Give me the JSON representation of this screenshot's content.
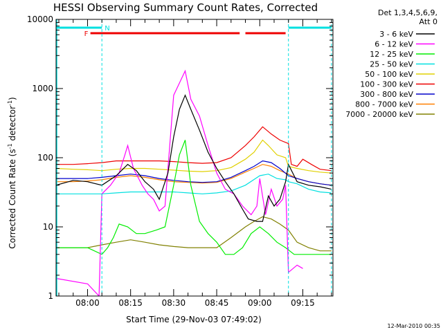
{
  "chart_data": {
    "type": "line",
    "title": "HESSI Observing Summary Count Rates, Corrected",
    "xlabel": "Start Time (29-Nov-03 07:49:02)",
    "ylabel_main": "Corrected Count Rate (s",
    "ylabel_sup1": "-1",
    "ylabel_mid": " detector",
    "ylabel_sup2": "-1",
    "ylabel_end": ")",
    "yscale": "log",
    "ylim": [
      1,
      10000
    ],
    "xlim": [
      "07:49:02",
      "09:25:30"
    ],
    "x_ticks": [
      "08:00",
      "08:15",
      "08:30",
      "08:45",
      "09:00",
      "09:15"
    ],
    "y_ticks": [
      "1",
      "10",
      "100",
      "1000",
      "10000"
    ],
    "legend_header": [
      "Det 1,3,4,5,6,9,",
      "Att 0"
    ],
    "legend_placement": "right",
    "footer_date": "12-Mar-2010 00:35",
    "flags": {
      "flare_label": "F",
      "night_label": "N",
      "flare_color": "#ee0000",
      "night_color": "#00e0e0",
      "flare_spans": [
        [
          "08:01",
          "08:53"
        ],
        [
          "08:55",
          "09:09"
        ]
      ],
      "night_spans": [
        [
          "07:49",
          "08:05"
        ],
        [
          "09:10",
          "09:25"
        ]
      ],
      "night_boundaries": [
        "08:05",
        "09:10",
        "09:25"
      ]
    },
    "series": [
      {
        "name": "3 - 6 keV",
        "color": "#000000",
        "points": [
          [
            "07:49",
            40
          ],
          [
            "07:55",
            47
          ],
          [
            "08:00",
            45
          ],
          [
            "08:05",
            40
          ],
          [
            "08:10",
            55
          ],
          [
            "08:14",
            80
          ],
          [
            "08:17",
            65
          ],
          [
            "08:20",
            45
          ],
          [
            "08:23",
            35
          ],
          [
            "08:25",
            25
          ],
          [
            "08:28",
            60
          ],
          [
            "08:30",
            200
          ],
          [
            "08:32",
            500
          ],
          [
            "08:34",
            800
          ],
          [
            "08:36",
            500
          ],
          [
            "08:39",
            250
          ],
          [
            "08:42",
            120
          ],
          [
            "08:45",
            70
          ],
          [
            "08:48",
            45
          ],
          [
            "08:51",
            30
          ],
          [
            "08:54",
            18
          ],
          [
            "08:56",
            13
          ],
          [
            "08:59",
            12
          ],
          [
            "09:01",
            12
          ],
          [
            "09:03",
            28
          ],
          [
            "09:05",
            20
          ],
          [
            "09:07",
            25
          ],
          [
            "09:09",
            45
          ],
          [
            "09:10",
            80
          ],
          [
            "09:13",
            45
          ],
          [
            "09:17",
            40
          ],
          [
            "09:21",
            38
          ],
          [
            "09:25",
            35
          ]
        ]
      },
      {
        "name": "6 - 12 keV",
        "color": "#ff00ff",
        "points": [
          [
            "07:49",
            1.8
          ],
          [
            "08:00",
            1.5
          ],
          [
            "08:04",
            1.0
          ],
          [
            "08:05",
            30
          ],
          [
            "08:08",
            40
          ],
          [
            "08:11",
            60
          ],
          [
            "08:13",
            110
          ],
          [
            "08:14",
            150
          ],
          [
            "08:16",
            70
          ],
          [
            "08:19",
            40
          ],
          [
            "08:21",
            30
          ],
          [
            "08:23",
            25
          ],
          [
            "08:25",
            17
          ],
          [
            "08:27",
            20
          ],
          [
            "08:30",
            800
          ],
          [
            "08:32",
            1200
          ],
          [
            "08:34",
            1800
          ],
          [
            "08:36",
            700
          ],
          [
            "08:39",
            400
          ],
          [
            "08:42",
            150
          ],
          [
            "08:45",
            60
          ],
          [
            "08:48",
            35
          ],
          [
            "08:51",
            30
          ],
          [
            "08:54",
            20
          ],
          [
            "08:57",
            15
          ],
          [
            "08:59",
            20
          ],
          [
            "09:00",
            50
          ],
          [
            "09:02",
            15
          ],
          [
            "09:04",
            35
          ],
          [
            "09:06",
            20
          ],
          [
            "09:08",
            25
          ],
          [
            "09:09",
            40
          ],
          [
            "09:10",
            2.2
          ],
          [
            "09:13",
            2.8
          ],
          [
            "09:15",
            2.5
          ]
        ]
      },
      {
        "name": "12 - 25 keV",
        "color": "#00ee00",
        "points": [
          [
            "07:49",
            5
          ],
          [
            "07:55",
            5
          ],
          [
            "08:00",
            5
          ],
          [
            "08:05",
            4
          ],
          [
            "08:07",
            5
          ],
          [
            "08:09",
            7
          ],
          [
            "08:11",
            11
          ],
          [
            "08:14",
            10
          ],
          [
            "08:17",
            8
          ],
          [
            "08:20",
            8
          ],
          [
            "08:24",
            9
          ],
          [
            "08:27",
            10
          ],
          [
            "08:30",
            40
          ],
          [
            "08:32",
            110
          ],
          [
            "08:34",
            180
          ],
          [
            "08:36",
            40
          ],
          [
            "08:39",
            12
          ],
          [
            "08:42",
            8
          ],
          [
            "08:45",
            6
          ],
          [
            "08:48",
            4
          ],
          [
            "08:51",
            4
          ],
          [
            "08:54",
            5
          ],
          [
            "08:57",
            8
          ],
          [
            "09:00",
            10
          ],
          [
            "09:03",
            8
          ],
          [
            "09:06",
            6
          ],
          [
            "09:09",
            5
          ],
          [
            "09:12",
            4
          ],
          [
            "09:15",
            4
          ],
          [
            "09:19",
            4
          ],
          [
            "09:22",
            4
          ],
          [
            "09:25",
            4
          ]
        ]
      },
      {
        "name": "25 - 50 keV",
        "color": "#00e0e0",
        "points": [
          [
            "07:49",
            30
          ],
          [
            "07:55",
            30
          ],
          [
            "08:00",
            30
          ],
          [
            "08:05",
            30
          ],
          [
            "08:10",
            31
          ],
          [
            "08:15",
            32
          ],
          [
            "08:20",
            32
          ],
          [
            "08:25",
            32
          ],
          [
            "08:30",
            32
          ],
          [
            "08:35",
            31
          ],
          [
            "08:40",
            30
          ],
          [
            "08:45",
            31
          ],
          [
            "08:50",
            33
          ],
          [
            "08:55",
            40
          ],
          [
            "09:00",
            55
          ],
          [
            "09:03",
            58
          ],
          [
            "09:06",
            50
          ],
          [
            "09:09",
            48
          ],
          [
            "09:10",
            45
          ],
          [
            "09:13",
            42
          ],
          [
            "09:17",
            35
          ],
          [
            "09:21",
            32
          ],
          [
            "09:25",
            31
          ]
        ]
      },
      {
        "name": "50 - 100 keV",
        "color": "#e0d000",
        "points": [
          [
            "07:49",
            70
          ],
          [
            "07:55",
            68
          ],
          [
            "08:00",
            67
          ],
          [
            "08:05",
            65
          ],
          [
            "08:10",
            68
          ],
          [
            "08:15",
            70
          ],
          [
            "08:20",
            70
          ],
          [
            "08:25",
            68
          ],
          [
            "08:30",
            66
          ],
          [
            "08:35",
            64
          ],
          [
            "08:40",
            63
          ],
          [
            "08:45",
            65
          ],
          [
            "08:50",
            72
          ],
          [
            "08:55",
            95
          ],
          [
            "08:58",
            120
          ],
          [
            "09:01",
            180
          ],
          [
            "09:03",
            150
          ],
          [
            "09:06",
            110
          ],
          [
            "09:09",
            100
          ],
          [
            "09:10",
            75
          ],
          [
            "09:13",
            70
          ],
          [
            "09:17",
            65
          ],
          [
            "09:21",
            62
          ],
          [
            "09:25",
            60
          ]
        ]
      },
      {
        "name": "100 - 300 keV",
        "color": "#ee0000",
        "points": [
          [
            "07:49",
            80
          ],
          [
            "07:55",
            80
          ],
          [
            "08:00",
            82
          ],
          [
            "08:05",
            85
          ],
          [
            "08:10",
            90
          ],
          [
            "08:15",
            90
          ],
          [
            "08:20",
            90
          ],
          [
            "08:25",
            90
          ],
          [
            "08:30",
            88
          ],
          [
            "08:35",
            85
          ],
          [
            "08:40",
            83
          ],
          [
            "08:45",
            85
          ],
          [
            "08:50",
            100
          ],
          [
            "08:55",
            150
          ],
          [
            "08:58",
            200
          ],
          [
            "09:01",
            280
          ],
          [
            "09:04",
            220
          ],
          [
            "09:07",
            180
          ],
          [
            "09:10",
            160
          ],
          [
            "09:11",
            80
          ],
          [
            "09:13",
            75
          ],
          [
            "09:15",
            95
          ],
          [
            "09:18",
            80
          ],
          [
            "09:21",
            68
          ],
          [
            "09:25",
            65
          ]
        ]
      },
      {
        "name": "300 - 800 keV",
        "color": "#0000cc",
        "points": [
          [
            "07:49",
            50
          ],
          [
            "07:55",
            50
          ],
          [
            "08:00",
            50
          ],
          [
            "08:05",
            52
          ],
          [
            "08:10",
            55
          ],
          [
            "08:15",
            58
          ],
          [
            "08:20",
            55
          ],
          [
            "08:25",
            50
          ],
          [
            "08:30",
            47
          ],
          [
            "08:35",
            45
          ],
          [
            "08:40",
            44
          ],
          [
            "08:45",
            45
          ],
          [
            "08:50",
            52
          ],
          [
            "08:55",
            65
          ],
          [
            "08:58",
            75
          ],
          [
            "09:01",
            90
          ],
          [
            "09:04",
            85
          ],
          [
            "09:07",
            70
          ],
          [
            "09:10",
            55
          ],
          [
            "09:13",
            50
          ],
          [
            "09:17",
            45
          ],
          [
            "09:21",
            42
          ],
          [
            "09:25",
            40
          ]
        ]
      },
      {
        "name": "800 - 7000 keV",
        "color": "#ff8000",
        "points": [
          [
            "07:49",
            45
          ],
          [
            "07:55",
            45
          ],
          [
            "08:00",
            46
          ],
          [
            "08:05",
            48
          ],
          [
            "08:10",
            52
          ],
          [
            "08:15",
            55
          ],
          [
            "08:20",
            52
          ],
          [
            "08:25",
            48
          ],
          [
            "08:30",
            45
          ],
          [
            "08:35",
            44
          ],
          [
            "08:40",
            43
          ],
          [
            "08:45",
            44
          ],
          [
            "08:50",
            50
          ],
          [
            "08:55",
            62
          ],
          [
            "08:58",
            70
          ],
          [
            "09:01",
            80
          ],
          [
            "09:04",
            75
          ],
          [
            "09:07",
            65
          ],
          [
            "09:10",
            58
          ],
          [
            "09:13",
            50
          ],
          [
            "09:17",
            45
          ],
          [
            "09:21",
            42
          ],
          [
            "09:25",
            40
          ]
        ]
      },
      {
        "name": "7000 - 20000 keV",
        "color": "#808000",
        "points": [
          [
            "07:49",
            5
          ],
          [
            "07:55",
            5
          ],
          [
            "08:00",
            5
          ],
          [
            "08:05",
            5.5
          ],
          [
            "08:10",
            6
          ],
          [
            "08:15",
            6.5
          ],
          [
            "08:20",
            6
          ],
          [
            "08:25",
            5.5
          ],
          [
            "08:30",
            5.2
          ],
          [
            "08:35",
            5
          ],
          [
            "08:40",
            5
          ],
          [
            "08:45",
            5
          ],
          [
            "08:50",
            7
          ],
          [
            "08:55",
            10
          ],
          [
            "08:58",
            12
          ],
          [
            "09:01",
            14
          ],
          [
            "09:04",
            13
          ],
          [
            "09:07",
            11
          ],
          [
            "09:10",
            9
          ],
          [
            "09:13",
            6
          ],
          [
            "09:17",
            5
          ],
          [
            "09:21",
            4.5
          ],
          [
            "09:25",
            4.5
          ]
        ]
      }
    ]
  }
}
